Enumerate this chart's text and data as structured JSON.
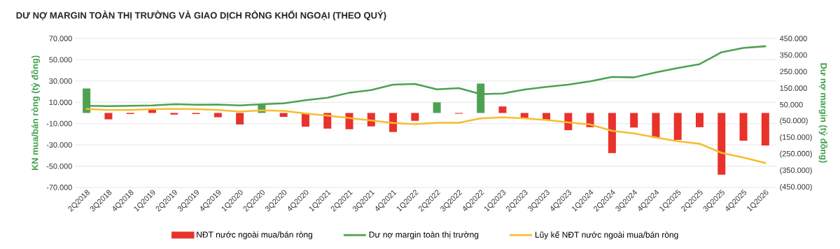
{
  "chart_data": {
    "type": "bar",
    "title": "DƯ NỢ MARGIN TOÀN THỊ TRƯỜNG VÀ GIAO DỊCH RÒNG KHỐI NGOẠI (THEO QUÝ)",
    "ylabel": "KN mua/bán ròng (tỷ đồng)",
    "y2label": "Dư nợ margin (tỷ đồng)",
    "categories": [
      "2Q2018",
      "3Q2018",
      "4Q2018",
      "1Q2019",
      "2Q2019",
      "3Q2019",
      "4Q2019",
      "1Q2020",
      "2Q2020",
      "3Q2020",
      "4Q2020",
      "1Q2021",
      "2Q2021",
      "3Q2021",
      "4Q2021",
      "1Q2022",
      "2Q2022",
      "3Q2022",
      "4Q2022",
      "1Q2023",
      "2Q2023",
      "3Q2023",
      "4Q2023",
      "1Q2024",
      "2Q2024",
      "3Q2024",
      "4Q2024",
      "1Q2025",
      "2Q2025",
      "3Q2025",
      "4Q2025",
      "1Q2026"
    ],
    "series": [
      {
        "name": "NĐT nước ngoài mua/bán ròng",
        "color": "#e8322a",
        "colors": [
          "#4ea152",
          "#e8322a",
          "#e8322a",
          "#e8322a",
          "#e8322a",
          "#e8322a",
          "#e8322a",
          "#e8322a",
          "#4ea152",
          "#e8322a",
          "#e8322a",
          "#e8322a",
          "#e8322a",
          "#e8322a",
          "#e8322a",
          "#e8322a",
          "#4ea152",
          "#e8322a",
          "#4ea152",
          "#e8322a",
          "#e8322a",
          "#e8322a",
          "#e8322a",
          "#e8322a",
          "#e8322a",
          "#e8322a",
          "#e8322a",
          "#e8322a",
          "#e8322a",
          "#e8322a",
          "#e8322a",
          "#e8322a"
        ],
        "values": [
          23000,
          -6000,
          -1000,
          3500,
          -1500,
          -1000,
          -4000,
          -10800,
          8400,
          -3700,
          -12900,
          -14700,
          -15300,
          -12600,
          -17900,
          -7400,
          10000,
          -700,
          27600,
          6100,
          -5600,
          -6800,
          -16200,
          -13400,
          -37700,
          -13700,
          -23500,
          -25300,
          -13400,
          -58000,
          -26100,
          -30600
        ]
      },
      {
        "name": "Dư nợ margin toàn thị trường",
        "type": "line",
        "axis": "y2",
        "color": "#4ea152",
        "values": [
          43000,
          41000,
          43000,
          45000,
          53000,
          50000,
          51000,
          45000,
          53000,
          58000,
          77000,
          92000,
          122000,
          138000,
          171000,
          175000,
          143000,
          150000,
          114000,
          117000,
          142000,
          157000,
          171000,
          191000,
          218000,
          215000,
          245000,
          271000,
          295000,
          367000,
          393000,
          403000
        ]
      },
      {
        "name": "Lũy kế NĐT nước ngoài mua/bán ròng",
        "type": "line",
        "axis": "y2",
        "color": "#f6bd31",
        "values": [
          24000,
          18000,
          18000,
          23000,
          24000,
          23000,
          18000,
          8000,
          16000,
          13000,
          -3000,
          -16000,
          -31000,
          -45000,
          -60000,
          -68000,
          -59000,
          -59000,
          -33000,
          -26000,
          -33000,
          -42000,
          -57000,
          -70000,
          -108000,
          -124000,
          -148000,
          -171000,
          -186000,
          -241000,
          -269000,
          -302000
        ]
      }
    ],
    "ylim": [
      -70000,
      70000
    ],
    "yticks": [
      {
        "value": -70000,
        "label": "-70.000"
      },
      {
        "value": -50000,
        "label": "-50.000"
      },
      {
        "value": -30000,
        "label": "-30.000"
      },
      {
        "value": -10000,
        "label": "-10.000"
      },
      {
        "value": 10000,
        "label": "10.000"
      },
      {
        "value": 30000,
        "label": "30.000"
      },
      {
        "value": 50000,
        "label": "50.000"
      },
      {
        "value": 70000,
        "label": "70.000"
      }
    ],
    "y2lim": [
      -450000,
      450000
    ],
    "y2ticks": [
      {
        "value": -450000,
        "label": "(450.000)"
      },
      {
        "value": -350000,
        "label": "(350.000)"
      },
      {
        "value": -250000,
        "label": "(250.000)"
      },
      {
        "value": -150000,
        "label": "(150.000)"
      },
      {
        "value": -50000,
        "label": "(50.000)"
      },
      {
        "value": 50000,
        "label": "50.000"
      },
      {
        "value": 150000,
        "label": "150.000"
      },
      {
        "value": 250000,
        "label": "250.000"
      },
      {
        "value": 350000,
        "label": "350.000"
      },
      {
        "value": 450000,
        "label": "450.000"
      }
    ],
    "grid": "y",
    "legend": "bottom"
  }
}
